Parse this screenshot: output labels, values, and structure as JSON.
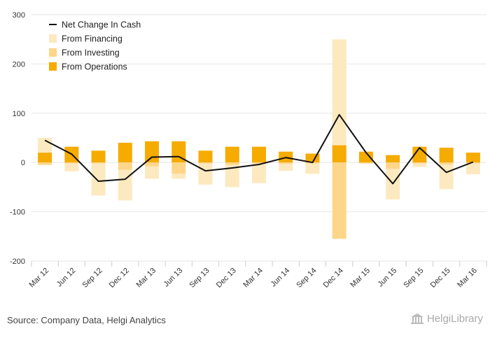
{
  "chart_data": {
    "type": "bar",
    "categories": [
      "Mar 12",
      "Jun 12",
      "Sep 12",
      "Dec 12",
      "Mar 13",
      "Jun 13",
      "Sep 13",
      "Dec 13",
      "Mar 14",
      "Jun 14",
      "Sep 14",
      "Dec 14",
      "Mar 15",
      "Jun 15",
      "Sep 15",
      "Dec 15",
      "Mar 16"
    ],
    "ylim": [
      -200,
      300
    ],
    "yticks": [
      -200,
      -100,
      0,
      100,
      200,
      300
    ],
    "grid": true,
    "legend_position": "top-left",
    "series": [
      {
        "name": "From Financing",
        "kind": "bar",
        "color": "#fde9c0",
        "values": [
          30,
          -16,
          -65,
          -62,
          -25,
          -10,
          -43,
          -45,
          -40,
          -14,
          -21,
          215,
          0,
          -62,
          -7,
          -50,
          -22
        ]
      },
      {
        "name": "From Investing",
        "kind": "bar",
        "color": "#fdd68a",
        "values": [
          -5,
          -2,
          -2,
          -15,
          -8,
          -23,
          -2,
          -5,
          -2,
          -3,
          -2,
          -155,
          -2,
          -13,
          -2,
          -4,
          -2
        ]
      },
      {
        "name": "From Operations",
        "kind": "bar",
        "color": "#f5ab00",
        "values": [
          20,
          32,
          24,
          40,
          43,
          43,
          24,
          32,
          32,
          22,
          18,
          35,
          22,
          15,
          32,
          30,
          20
        ]
      },
      {
        "name": "Net Change In Cash",
        "kind": "line",
        "color": "#111111",
        "values": [
          45,
          17,
          -38,
          -34,
          11,
          12,
          -17,
          -11,
          -4,
          10,
          0,
          97,
          20,
          -43,
          30,
          -20,
          1
        ]
      }
    ]
  },
  "legend_order": [
    "Net Change In Cash",
    "From Financing",
    "From Investing",
    "From Operations"
  ],
  "footer": {
    "source": "Source: Company Data, Helgi Analytics",
    "brand": "HelgiLibrary"
  }
}
